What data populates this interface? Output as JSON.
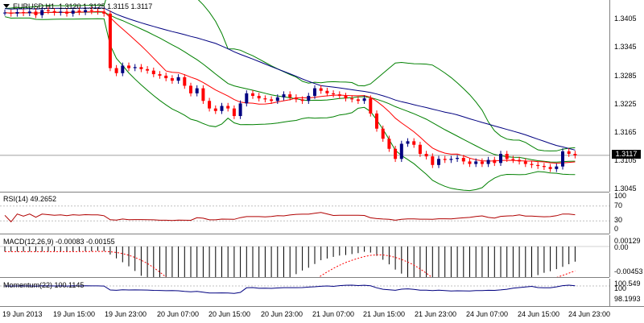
{
  "chart": {
    "symbol_timeframe": "EURUSD,H1",
    "ohlc": "1.3120 1.3125 1.3115 1.3117",
    "current_price": "1.3117",
    "price_ticks": [
      "1.3405",
      "1.3345",
      "1.3285",
      "1.3225",
      "1.3165",
      "1.3105",
      "1.3045"
    ],
    "time_labels": [
      "19 Jun 2013",
      "19 Jun 15:00",
      "19 Jun 23:00",
      "20 Jun 07:00",
      "20 Jun 15:00",
      "20 Jun 23:00",
      "21 Jun 07:00",
      "21 Jun 15:00",
      "21 Jun 23:00",
      "24 Jun 07:00",
      "24 Jun 15:00",
      "24 Jun 23:00"
    ],
    "colors": {
      "bull": "#000080",
      "bear": "#ff0000",
      "bollinger": "#008000",
      "ma_fast": "#ff0000",
      "ma_slow": "#000080"
    }
  },
  "rsi": {
    "title": "RSI(14) 49.2652",
    "ticks": [
      "100",
      "70",
      "30",
      "0"
    ]
  },
  "macd": {
    "title": "MACD(12,26,9) -0.00083 -0.00155",
    "ticks": [
      "0.00129",
      "0.00",
      "-0.00453"
    ]
  },
  "momentum": {
    "title": "Momentum(22) 100.1145",
    "ticks": [
      "100.549",
      "100",
      "98.1993"
    ]
  },
  "chart_data": {
    "type": "line",
    "title": "EURUSD,H1",
    "series": [
      {
        "name": "EURUSD",
        "values": [
          1.34,
          1.3398,
          1.3401,
          1.3399,
          1.3402,
          1.3395,
          1.3405,
          1.3403,
          1.34,
          1.3402,
          1.3398,
          1.3404,
          1.3401,
          1.3405,
          1.3403,
          1.3402,
          1.3398,
          1.329,
          1.328,
          1.3295,
          1.329,
          1.3292,
          1.3288,
          1.3285,
          1.3278,
          1.3275,
          1.327,
          1.3265,
          1.3272,
          1.3255,
          1.324,
          1.325,
          1.3225,
          1.321,
          1.3205,
          1.3215,
          1.321,
          1.3195,
          1.322,
          1.324,
          1.3235,
          1.323,
          1.3228,
          1.3225,
          1.3232,
          1.3238,
          1.3232,
          1.3228,
          1.3225,
          1.3235,
          1.325,
          1.3245,
          1.324,
          1.3238,
          1.3235,
          1.323,
          1.3228,
          1.3225,
          1.323,
          1.32,
          1.317,
          1.315,
          1.313,
          1.311,
          1.314,
          1.3145,
          1.3138,
          1.312,
          1.3115,
          1.3098,
          1.311,
          1.3108,
          1.311,
          1.3112,
          1.3105,
          1.31,
          1.3105,
          1.31,
          1.3108,
          1.3102,
          1.312,
          1.311,
          1.3108,
          1.3105,
          1.31,
          1.3098,
          1.3096,
          1.3094,
          1.309,
          1.3095,
          1.3125,
          1.312,
          1.3117
        ]
      }
    ],
    "ylim": [
      1.3045,
      1.3425
    ]
  }
}
